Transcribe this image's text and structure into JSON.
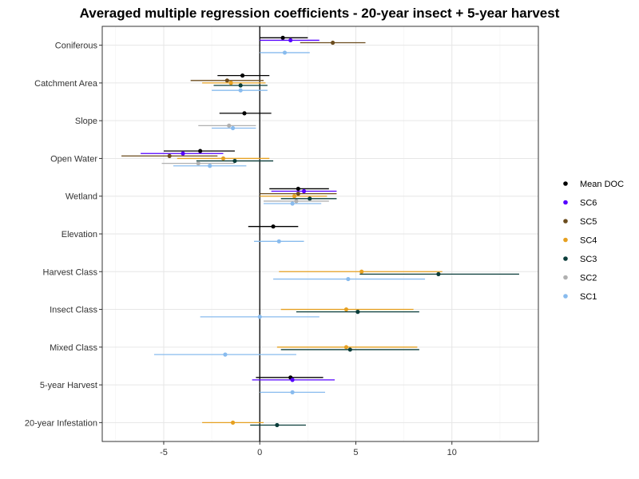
{
  "chart_data": {
    "type": "dot-errorbar",
    "title": "Averaged multiple regression coefficients - 20-year insect + 5-year harvest",
    "xlabel": "",
    "ylabel": "",
    "xlim": [
      -8.2,
      14.5
    ],
    "xticks": [
      -5,
      0,
      5,
      10
    ],
    "xtick_labels": [
      "-5",
      "0",
      "5",
      "10"
    ],
    "reference_line_x": 0,
    "categories": [
      "Coniferous",
      "Catchment Area",
      "Slope",
      "Open Water",
      "Wetland",
      "Elevation",
      "Harvest Class",
      "Insect Class",
      "Mixed Class",
      "5-year Harvest",
      "20-year Infestation"
    ],
    "legend_position": "right",
    "series": [
      {
        "name": "Mean DOC",
        "color": "#000000",
        "points": [
          {
            "category": "Coniferous",
            "estimate": 1.2,
            "low": 0.0,
            "high": 2.5
          },
          {
            "category": "Catchment Area",
            "estimate": -0.9,
            "low": -2.2,
            "high": 0.5
          },
          {
            "category": "Slope",
            "estimate": -0.8,
            "low": -2.1,
            "high": 0.6
          },
          {
            "category": "Open Water",
            "estimate": -3.1,
            "low": -5.0,
            "high": -1.3
          },
          {
            "category": "Wetland",
            "estimate": 2.0,
            "low": 0.5,
            "high": 3.6
          },
          {
            "category": "Elevation",
            "estimate": 0.7,
            "low": -0.6,
            "high": 2.0
          },
          {
            "category": "5-year Harvest",
            "estimate": 1.6,
            "low": -0.2,
            "high": 3.3
          }
        ]
      },
      {
        "name": "SC6",
        "color": "#5500ff",
        "points": [
          {
            "category": "Coniferous",
            "estimate": 1.6,
            "low": 0.0,
            "high": 3.1
          },
          {
            "category": "Open Water",
            "estimate": -4.0,
            "low": -6.2,
            "high": -1.9
          },
          {
            "category": "Wetland",
            "estimate": 2.3,
            "low": 0.6,
            "high": 4.0
          },
          {
            "category": "5-year Harvest",
            "estimate": 1.7,
            "low": -0.4,
            "high": 3.9
          }
        ]
      },
      {
        "name": "SC5",
        "color": "#6b4c1e",
        "points": [
          {
            "category": "Coniferous",
            "estimate": 3.8,
            "low": 2.1,
            "high": 5.5
          },
          {
            "category": "Catchment Area",
            "estimate": -1.7,
            "low": -3.6,
            "high": 0.2
          },
          {
            "category": "Open Water",
            "estimate": -4.7,
            "low": -7.2,
            "high": -2.2
          },
          {
            "category": "Wetland",
            "estimate": 2.0,
            "low": 0.0,
            "high": 4.0
          }
        ]
      },
      {
        "name": "SC4",
        "color": "#e6a020",
        "points": [
          {
            "category": "Catchment Area",
            "estimate": -1.5,
            "low": -3.0,
            "high": 0.3
          },
          {
            "category": "Open Water",
            "estimate": -1.9,
            "low": -4.3,
            "high": 0.5
          },
          {
            "category": "Wetland",
            "estimate": 1.8,
            "low": 0.0,
            "high": 3.5
          },
          {
            "category": "Harvest Class",
            "estimate": 5.3,
            "low": 1.0,
            "high": 9.5
          },
          {
            "category": "Insect Class",
            "estimate": 4.5,
            "low": 1.1,
            "high": 8.0
          },
          {
            "category": "Mixed Class",
            "estimate": 4.5,
            "low": 0.9,
            "high": 8.2
          },
          {
            "category": "20-year Infestation",
            "estimate": -1.4,
            "low": -3.0,
            "high": 0.2
          }
        ]
      },
      {
        "name": "SC3",
        "color": "#0a3d3a",
        "points": [
          {
            "category": "Catchment Area",
            "estimate": -1.0,
            "low": -2.4,
            "high": 0.4
          },
          {
            "category": "Open Water",
            "estimate": -1.3,
            "low": -3.3,
            "high": 0.7
          },
          {
            "category": "Wetland",
            "estimate": 2.6,
            "low": 1.1,
            "high": 4.0
          },
          {
            "category": "Harvest Class",
            "estimate": 9.3,
            "low": 5.2,
            "high": 13.5
          },
          {
            "category": "Insect Class",
            "estimate": 5.1,
            "low": 1.9,
            "high": 8.3
          },
          {
            "category": "Mixed Class",
            "estimate": 4.7,
            "low": 1.1,
            "high": 8.3
          },
          {
            "category": "20-year Infestation",
            "estimate": 0.9,
            "low": -0.5,
            "high": 2.4
          }
        ]
      },
      {
        "name": "SC2",
        "color": "#b0b0b0",
        "points": [
          {
            "category": "Slope",
            "estimate": -1.6,
            "low": -3.2,
            "high": -0.2
          },
          {
            "category": "Open Water",
            "estimate": -3.2,
            "low": -5.1,
            "high": -1.3
          },
          {
            "category": "Wetland",
            "estimate": 1.9,
            "low": 0.2,
            "high": 3.6
          }
        ]
      },
      {
        "name": "SC1",
        "color": "#88bbee",
        "points": [
          {
            "category": "Coniferous",
            "estimate": 1.3,
            "low": 0.0,
            "high": 2.6
          },
          {
            "category": "Catchment Area",
            "estimate": -1.0,
            "low": -2.5,
            "high": 0.4
          },
          {
            "category": "Slope",
            "estimate": -1.4,
            "low": -2.5,
            "high": -0.2
          },
          {
            "category": "Open Water",
            "estimate": -2.6,
            "low": -4.5,
            "high": -0.7
          },
          {
            "category": "Wetland",
            "estimate": 1.7,
            "low": 0.2,
            "high": 3.2
          },
          {
            "category": "Elevation",
            "estimate": 1.0,
            "low": -0.3,
            "high": 2.3
          },
          {
            "category": "Harvest Class",
            "estimate": 4.6,
            "low": 0.7,
            "high": 8.6
          },
          {
            "category": "Insect Class",
            "estimate": 0.0,
            "low": -3.1,
            "high": 3.1
          },
          {
            "category": "Mixed Class",
            "estimate": -1.8,
            "low": -5.5,
            "high": 1.9
          },
          {
            "category": "5-year Harvest",
            "estimate": 1.7,
            "low": 0.0,
            "high": 3.4
          }
        ]
      }
    ]
  }
}
